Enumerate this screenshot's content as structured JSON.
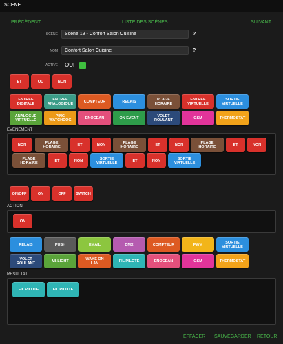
{
  "window": {
    "title": "SCENE"
  },
  "nav": {
    "prev": "PRÉCÉDENT",
    "list": "LISTE DES SCÈNES",
    "next": "SUIVANT"
  },
  "form": {
    "scene_label": "SCENE",
    "scene_value": "Scène 19 - Confort Salon Cuisine",
    "nom_label": "NOM",
    "nom_value": "Confort Salon Cuisine",
    "actif_label": "ACTIVÉ",
    "actif_value": "OUI",
    "help": "?"
  },
  "logic": [
    "ET",
    "OU",
    "NON"
  ],
  "event_types": [
    {
      "label": "ENTREE\nDIGITALE",
      "color": "#d8312b"
    },
    {
      "label": "ENTREE\nANALOGIQUE",
      "color": "#3b9c88"
    },
    {
      "label": "COMPTEUR",
      "color": "#dd5a22"
    },
    {
      "label": "RELAIS",
      "color": "#2c8fde"
    },
    {
      "label": "PLAGE\nHORAIRE",
      "color": "#7a5038"
    },
    {
      "label": "ENTREE\nVIRTUELLE",
      "color": "#d8312b"
    },
    {
      "label": "SORTIE\nVIRTUELLE",
      "color": "#2c8fde"
    },
    {
      "label": "ANALOGUE\nVIRTUELLE",
      "color": "#5aa43a"
    },
    {
      "label": "PING\nWATCHDOG",
      "color": "#ec9a18"
    },
    {
      "label": "ENOCEAN",
      "color": "#e4507c"
    },
    {
      "label": "ON EVENT",
      "color": "#2e9c4a"
    },
    {
      "label": "VOLET\nROULANT",
      "color": "#2c4a7a"
    },
    {
      "label": "GSM",
      "color": "#e2349a"
    },
    {
      "label": "THERMOSTAT",
      "color": "#f2a31a"
    }
  ],
  "evenement": {
    "label": "EVENEMENT",
    "items": [
      {
        "label": "NON",
        "color": "#d8312b"
      },
      {
        "label": "PLAGE\nHORAIRE",
        "color": "#7a5038"
      },
      {
        "label": "ET",
        "color": "#d8312b"
      },
      {
        "label": "NON",
        "color": "#d8312b"
      },
      {
        "label": "PLAGE\nHORAIRE",
        "color": "#7a5038"
      },
      {
        "label": "ET",
        "color": "#d8312b"
      },
      {
        "label": "NON",
        "color": "#d8312b"
      },
      {
        "label": "PLAGE\nHORAIRE",
        "color": "#7a5038"
      },
      {
        "label": "ET",
        "color": "#d8312b"
      },
      {
        "label": "NON",
        "color": "#d8312b"
      },
      {
        "label": "PLAGE\nHORAIRE",
        "color": "#7a5038"
      },
      {
        "label": "ET",
        "color": "#d8312b"
      },
      {
        "label": "NON",
        "color": "#d8312b"
      },
      {
        "label": "SORTIE\nVIRTUELLE",
        "color": "#2c8fde"
      },
      {
        "label": "ET",
        "color": "#d8312b"
      },
      {
        "label": "NON",
        "color": "#d8312b"
      },
      {
        "label": "SORTIE\nVIRTUELLE",
        "color": "#2c8fde"
      }
    ]
  },
  "actions_logic": [
    "ON/OFF",
    "ON",
    "OFF",
    "SWITCH"
  ],
  "action": {
    "label": "ACTION",
    "items": [
      "ON"
    ]
  },
  "result_types": [
    {
      "label": "RELAIS",
      "color": "#2c8fde"
    },
    {
      "label": "PUSH",
      "color": "#5a5a5a"
    },
    {
      "label": "EMAIL",
      "color": "#8cc63f"
    },
    {
      "label": "DMX",
      "color": "#b55bb0"
    },
    {
      "label": "COMPTEUR",
      "color": "#dd5a22"
    },
    {
      "label": "PWM",
      "color": "#f2b51a"
    },
    {
      "label": "SORTIE\nVIRTUELLE",
      "color": "#2c8fde"
    },
    {
      "label": "VOLET\nROULANT",
      "color": "#2c4a7a"
    },
    {
      "label": "MI-LIGHT",
      "color": "#5aa43a"
    },
    {
      "label": "WAKE ON\nLAN",
      "color": "#dd5a22"
    },
    {
      "label": "FIL PILOTE",
      "color": "#2fb5b5"
    },
    {
      "label": "ENOCEAN",
      "color": "#e4507c"
    },
    {
      "label": "GSM",
      "color": "#e2349a"
    },
    {
      "label": "THERMOSTAT",
      "color": "#f2a31a"
    }
  ],
  "resultat": {
    "label": "RESULTAT",
    "items": [
      "FIL PILOTE",
      "FIL PILOTE"
    ]
  },
  "footer": {
    "effacer": "EFFACER",
    "sauvegarder": "SAUVEGARDER",
    "retour": "RETOUR"
  }
}
